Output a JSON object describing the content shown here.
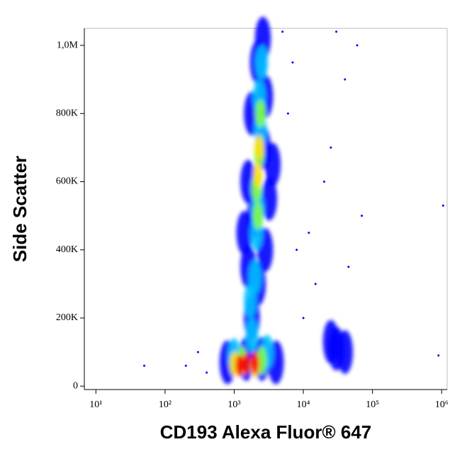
{
  "chart_data": {
    "type": "density",
    "x_label": "CD193 Alexa Fluor® 647",
    "y_label": "Side Scatter",
    "xscale": "log",
    "xlim": [
      6.8,
      1200000
    ],
    "ylim": [
      -10000,
      1050000
    ],
    "xticks": [
      {
        "value": 10,
        "label": "10¹"
      },
      {
        "value": 100,
        "label": "10²"
      },
      {
        "value": 1000,
        "label": "10³"
      },
      {
        "value": 10000,
        "label": "10⁴"
      },
      {
        "value": 100000,
        "label": "10⁵"
      },
      {
        "value": 1000000,
        "label": "10⁶"
      }
    ],
    "yticks": [
      0,
      {
        "value": 200000,
        "label": "200K"
      },
      {
        "value": 400000,
        "label": "400K"
      },
      {
        "value": 600000,
        "label": "600K"
      },
      {
        "value": 800000,
        "label": "800K"
      },
      {
        "value": 1000000,
        "label": "1,0M"
      }
    ],
    "colors": [
      "#0000ff",
      "#0000ff",
      "#00c0ff",
      "#80ff40",
      "#ffe000",
      "#ff0000"
    ],
    "x": [
      8000,
      15000,
      20000,
      40000,
      60000,
      10000,
      6000,
      70000,
      300,
      200,
      50,
      30000,
      5000,
      900000,
      1050000,
      12000,
      25000,
      45000,
      7000,
      400,
      1500,
      2500,
      800,
      4000,
      1800,
      2200,
      1600,
      2800,
      2000,
      3200,
      1600,
      2600,
      1800,
      2800,
      2200,
      2600,
      1400,
      3600,
      30000,
      25000,
      40000,
      1800,
      1700,
      2000,
      2100,
      2200,
      2400,
      2300,
      2500,
      1000,
      3000,
      2100,
      2300,
      2400,
      2200,
      1300,
      2500,
      2200,
      2300,
      2000,
      1000,
      1500,
      2000,
      1200
    ],
    "y": [
      400000,
      300000,
      600000,
      900000,
      1000000,
      200000,
      800000,
      500000,
      100000,
      60000,
      60000,
      1040000,
      1040000,
      90000,
      530000,
      450000,
      700000,
      350000,
      950000,
      40000,
      80000,
      80000,
      70000,
      70000,
      200000,
      300000,
      350000,
      400000,
      500000,
      550000,
      600000,
      700000,
      800000,
      850000,
      950000,
      1020000,
      450000,
      650000,
      110000,
      130000,
      100000,
      150000,
      250000,
      320000,
      450000,
      520000,
      750000,
      850000,
      950000,
      90000,
      100000,
      580000,
      680000,
      800000,
      500000,
      75000,
      75000,
      620000,
      700000,
      60000,
      65000,
      65000,
      68000,
      60000
    ],
    "density": [
      0,
      0,
      0,
      0,
      0,
      0,
      0,
      0,
      0,
      0,
      0,
      0,
      0,
      0,
      0,
      0,
      0,
      0,
      0,
      0,
      1,
      1,
      1,
      1,
      1,
      1,
      1,
      1,
      1,
      1,
      1,
      1,
      1,
      1,
      1,
      1,
      1,
      1,
      1,
      1,
      1,
      2,
      2,
      2,
      2,
      2,
      2,
      2,
      2,
      2,
      2,
      3,
      3,
      3,
      3,
      3,
      3,
      4,
      4,
      4,
      4,
      5,
      5,
      5
    ]
  }
}
